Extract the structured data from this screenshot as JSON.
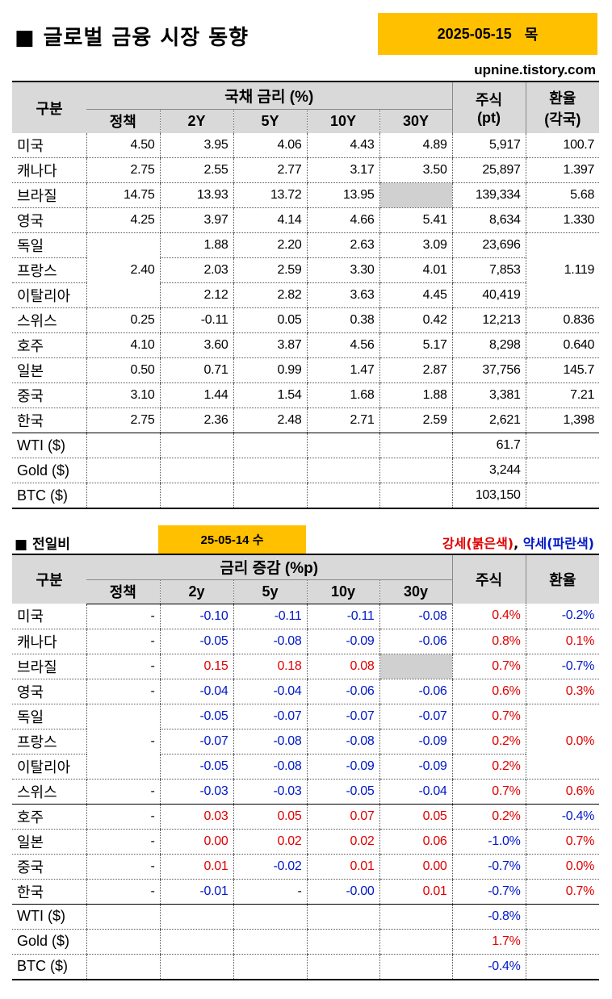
{
  "header": {
    "title": "■ 글로벌 금융 시장 동향",
    "date": "2025-05-15",
    "weekday": "목",
    "site": "upnine.tistory.com"
  },
  "table1": {
    "col_category": "구분",
    "col_bond_group": "국채 금리 (%)",
    "col_policy": "정책",
    "col_2y": "2Y",
    "col_5y": "5Y",
    "col_10y": "10Y",
    "col_30y": "30Y",
    "col_stock": "주식\n(pt)",
    "col_stock_line1": "주식",
    "col_stock_line2": "(pt)",
    "col_fx_line1": "환율",
    "col_fx_line2": "(각국)",
    "rows": [
      {
        "name": "미국",
        "policy": "4.50",
        "y2": "3.95",
        "y5": "4.06",
        "y10": "4.43",
        "y30": "4.89",
        "stock": "5,917",
        "fx": "100.7"
      },
      {
        "name": "캐나다",
        "policy": "2.75",
        "y2": "2.55",
        "y5": "2.77",
        "y10": "3.17",
        "y30": "3.50",
        "stock": "25,897",
        "fx": "1.397"
      },
      {
        "name": "브라질",
        "policy": "14.75",
        "y2": "13.93",
        "y5": "13.72",
        "y10": "13.95",
        "y30": "",
        "stock": "139,334",
        "fx": "5.68"
      },
      {
        "name": "영국",
        "policy": "4.25",
        "y2": "3.97",
        "y5": "4.14",
        "y10": "4.66",
        "y30": "5.41",
        "stock": "8,634",
        "fx": "1.330"
      },
      {
        "name": "독일",
        "y2": "1.88",
        "y5": "2.20",
        "y10": "2.63",
        "y30": "3.09",
        "stock": "23,696"
      },
      {
        "name": "프랑스",
        "y2": "2.03",
        "y5": "2.59",
        "y10": "3.30",
        "y30": "4.01",
        "stock": "7,853"
      },
      {
        "name": "이탈리아",
        "y2": "2.12",
        "y5": "2.82",
        "y10": "3.63",
        "y30": "4.45",
        "stock": "40,419"
      },
      {
        "name": "스위스",
        "policy": "0.25",
        "y2": "-0.11",
        "y5": "0.05",
        "y10": "0.38",
        "y30": "0.42",
        "stock": "12,213",
        "fx": "0.836"
      },
      {
        "name": "호주",
        "policy": "4.10",
        "y2": "3.60",
        "y5": "3.87",
        "y10": "4.56",
        "y30": "5.17",
        "stock": "8,298",
        "fx": "0.640"
      },
      {
        "name": "일본",
        "policy": "0.50",
        "y2": "0.71",
        "y5": "0.99",
        "y10": "1.47",
        "y30": "2.87",
        "stock": "37,756",
        "fx": "145.7"
      },
      {
        "name": "중국",
        "policy": "3.10",
        "y2": "1.44",
        "y5": "1.54",
        "y10": "1.68",
        "y30": "1.88",
        "stock": "3,381",
        "fx": "7.21"
      },
      {
        "name": "한국",
        "policy": "2.75",
        "y2": "2.36",
        "y5": "2.48",
        "y10": "2.71",
        "y30": "2.59",
        "stock": "2,621",
        "fx": "1,398"
      }
    ],
    "euro_policy": "2.40",
    "euro_fx": "1.119",
    "commodities": [
      {
        "name": "WTI ($)",
        "value": "61.7"
      },
      {
        "name": "Gold ($)",
        "value": "3,244"
      },
      {
        "name": "BTC ($)",
        "value": "103,150"
      }
    ]
  },
  "section2": {
    "title": "■ 전일비",
    "prev_date": "25-05-14 수",
    "legend_strong": "강세(붉은색)",
    "legend_sep": ",",
    "legend_weak": "약세(파란색)"
  },
  "table2": {
    "col_category": "구분",
    "col_rate_group": "금리 증감 (%p)",
    "col_policy": "정책",
    "col_2y": "2y",
    "col_5y": "5y",
    "col_10y": "10y",
    "col_30y": "30y",
    "col_stock": "주식",
    "col_fx": "환율",
    "rows": [
      {
        "name": "미국",
        "policy": "-",
        "y2": "-0.10",
        "y5": "-0.11",
        "y10": "-0.11",
        "y30": "-0.08",
        "stock": "0.4%",
        "fx": "-0.2%"
      },
      {
        "name": "캐나다",
        "policy": "-",
        "y2": "-0.05",
        "y5": "-0.08",
        "y10": "-0.09",
        "y30": "-0.06",
        "stock": "0.8%",
        "fx": "0.1%"
      },
      {
        "name": "브라질",
        "policy": "-",
        "y2": "0.15",
        "y5": "0.18",
        "y10": "0.08",
        "y30": "",
        "stock": "0.7%",
        "fx": "-0.7%"
      },
      {
        "name": "영국",
        "policy": "-",
        "y2": "-0.04",
        "y5": "-0.04",
        "y10": "-0.06",
        "y30": "-0.06",
        "stock": "0.6%",
        "fx": "0.3%"
      },
      {
        "name": "독일",
        "y2": "-0.05",
        "y5": "-0.07",
        "y10": "-0.07",
        "y30": "-0.07",
        "stock": "0.7%"
      },
      {
        "name": "프랑스",
        "y2": "-0.07",
        "y5": "-0.08",
        "y10": "-0.08",
        "y30": "-0.09",
        "stock": "0.2%"
      },
      {
        "name": "이탈리아",
        "y2": "-0.05",
        "y5": "-0.08",
        "y10": "-0.09",
        "y30": "-0.09",
        "stock": "0.2%"
      },
      {
        "name": "스위스",
        "policy": "-",
        "y2": "-0.03",
        "y5": "-0.03",
        "y10": "-0.05",
        "y30": "-0.04",
        "stock": "0.7%",
        "fx": "0.6%"
      },
      {
        "name": "호주",
        "policy": "-",
        "y2": "0.03",
        "y5": "0.05",
        "y10": "0.07",
        "y30": "0.05",
        "stock": "0.2%",
        "fx": "-0.4%"
      },
      {
        "name": "일본",
        "policy": "-",
        "y2": "0.00",
        "y5": "0.02",
        "y10": "0.02",
        "y30": "0.06",
        "stock": "-1.0%",
        "fx": "0.7%"
      },
      {
        "name": "중국",
        "policy": "-",
        "y2": "0.01",
        "y5": "-0.02",
        "y10": "0.01",
        "y30": "0.00",
        "stock": "-0.7%",
        "fx": "0.0%"
      },
      {
        "name": "한국",
        "policy": "-",
        "y2": "-0.01",
        "y5": "-",
        "y10": "-0.00",
        "y30": "0.01",
        "stock": "-0.7%",
        "fx": "0.7%"
      }
    ],
    "euro_policy": "-",
    "euro_fx": "0.0%",
    "commodities": [
      {
        "name": "WTI ($)",
        "value": "-0.8%"
      },
      {
        "name": "Gold ($)",
        "value": "1.7%"
      },
      {
        "name": "BTC ($)",
        "value": "-0.4%"
      }
    ]
  },
  "colors": {
    "accent": "#ffc000",
    "header_bg": "#d9d9d9",
    "up": "#e00000",
    "down": "#0018c8",
    "neutral": "#000000"
  }
}
